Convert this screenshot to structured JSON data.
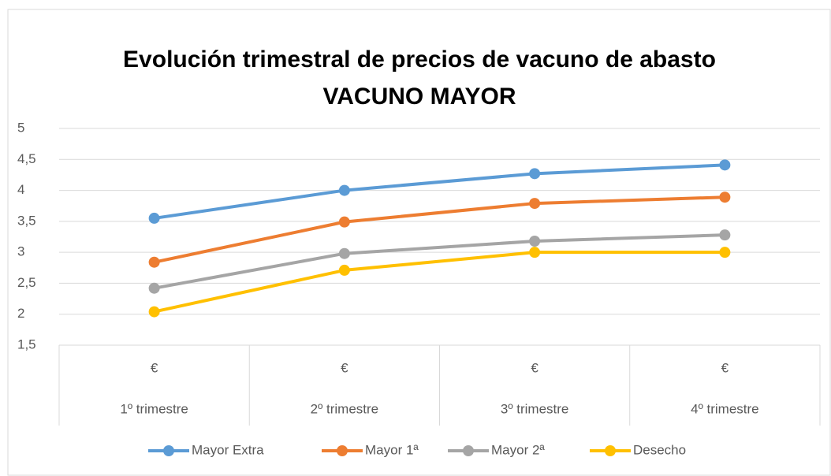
{
  "chart_data": {
    "type": "line",
    "title": "Evolución trimestral de precios de vacuno de abasto",
    "subtitle": "VACUNO MAYOR",
    "categories": [
      "1º trimestre",
      "2º trimestre",
      "3º trimestre",
      "4º trimestre"
    ],
    "subcategories": [
      "€",
      "€",
      "€",
      "€"
    ],
    "series": [
      {
        "name": "Mayor Extra",
        "color": "#5b9bd5",
        "values": [
          3.55,
          4.0,
          4.27,
          4.41
        ]
      },
      {
        "name": "Mayor 1ª",
        "color": "#ed7d31",
        "values": [
          2.84,
          3.49,
          3.79,
          3.89
        ]
      },
      {
        "name": "Mayor 2ª",
        "color": "#a5a5a5",
        "values": [
          2.42,
          2.98,
          3.18,
          3.28
        ]
      },
      {
        "name": "Desecho",
        "color": "#ffc000",
        "values": [
          2.04,
          2.71,
          3.0,
          3.0
        ]
      }
    ],
    "ylim": [
      1.5,
      5
    ],
    "yticks": [
      {
        "value": 1.5,
        "label": "1,5"
      },
      2,
      {
        "value": 2.5,
        "label": "2,5"
      },
      3,
      {
        "value": 3.5,
        "label": "3,5"
      },
      4,
      {
        "value": 4.5,
        "label": "4,5"
      },
      5
    ],
    "grid": true,
    "legend": "bottom"
  }
}
